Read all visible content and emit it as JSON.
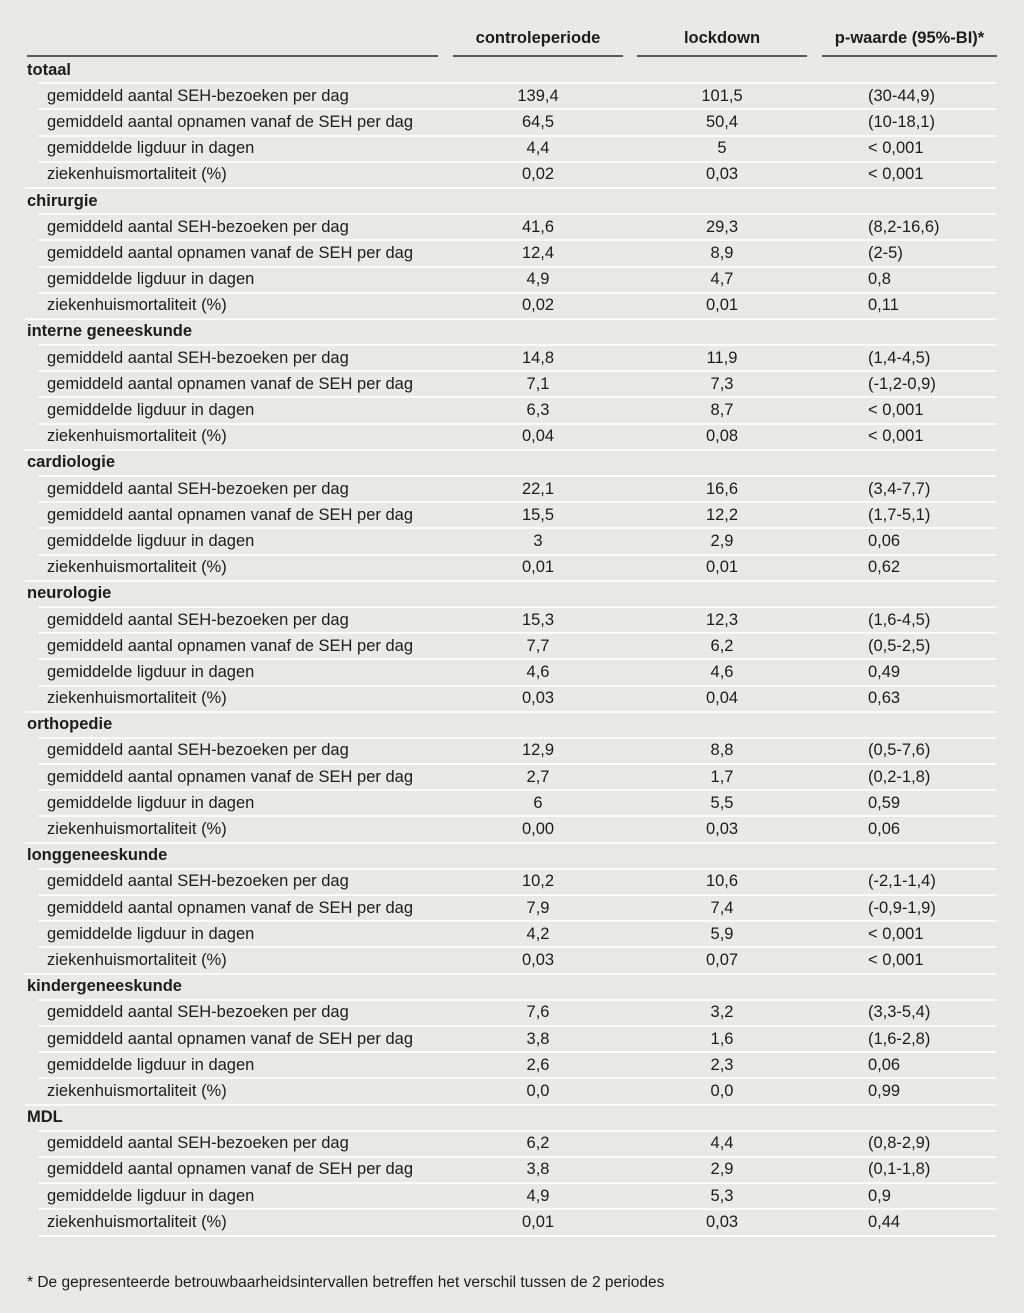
{
  "page": {
    "background_color": "#e9e9e7",
    "text_color": "#1d1d1b",
    "separator_color": "#fbfbfa",
    "header_rule_color": "#59595b"
  },
  "table": {
    "columns": [
      {
        "label": "controleperiode"
      },
      {
        "label": "lockdown"
      },
      {
        "label": "p-waarde (95%-BI)*"
      }
    ],
    "sections": [
      {
        "name": "totaal",
        "rows": [
          {
            "label": "gemiddeld aantal SEH-bezoeken per dag",
            "controleperiode": "139,4",
            "lockdown": "101,5",
            "p_waarde": "(30-44,9)"
          },
          {
            "label": "gemiddeld aantal opnamen vanaf de SEH per dag",
            "controleperiode": "64,5",
            "lockdown": "50,4",
            "p_waarde": "(10-18,1)"
          },
          {
            "label": "gemiddelde ligduur in dagen",
            "controleperiode": "4,4",
            "lockdown": "5",
            "p_waarde": "< 0,001"
          },
          {
            "label": "ziekenhuismortaliteit (%)",
            "controleperiode": "0,02",
            "lockdown": "0,03",
            "p_waarde": "< 0,001"
          }
        ]
      },
      {
        "name": "chirurgie",
        "rows": [
          {
            "label": "gemiddeld aantal SEH-bezoeken per dag",
            "controleperiode": "41,6",
            "lockdown": "29,3",
            "p_waarde": "(8,2-16,6)"
          },
          {
            "label": "gemiddeld aantal opnamen vanaf de SEH per dag",
            "controleperiode": "12,4",
            "lockdown": "8,9",
            "p_waarde": "(2-5)"
          },
          {
            "label": "gemiddelde ligduur in dagen",
            "controleperiode": "4,9",
            "lockdown": "4,7",
            "p_waarde": "0,8"
          },
          {
            "label": "ziekenhuismortaliteit (%)",
            "controleperiode": "0,02",
            "lockdown": "0,01",
            "p_waarde": "0,11"
          }
        ]
      },
      {
        "name": "interne geneeskunde",
        "rows": [
          {
            "label": "gemiddeld aantal SEH-bezoeken per dag",
            "controleperiode": "14,8",
            "lockdown": "11,9",
            "p_waarde": "(1,4-4,5)"
          },
          {
            "label": "gemiddeld aantal opnamen vanaf de SEH per dag",
            "controleperiode": "7,1",
            "lockdown": "7,3",
            "p_waarde": "(-1,2-0,9)"
          },
          {
            "label": "gemiddelde ligduur in dagen",
            "controleperiode": "6,3",
            "lockdown": "8,7",
            "p_waarde": "< 0,001"
          },
          {
            "label": "ziekenhuismortaliteit (%)",
            "controleperiode": "0,04",
            "lockdown": "0,08",
            "p_waarde": "< 0,001"
          }
        ]
      },
      {
        "name": "cardiologie",
        "rows": [
          {
            "label": "gemiddeld aantal SEH-bezoeken per dag",
            "controleperiode": "22,1",
            "lockdown": "16,6",
            "p_waarde": "(3,4-7,7)"
          },
          {
            "label": "gemiddeld aantal opnamen vanaf de SEH per dag",
            "controleperiode": "15,5",
            "lockdown": "12,2",
            "p_waarde": "(1,7-5,1)"
          },
          {
            "label": "gemiddelde ligduur in dagen",
            "controleperiode": "3",
            "lockdown": "2,9",
            "p_waarde": "0,06"
          },
          {
            "label": "ziekenhuismortaliteit (%)",
            "controleperiode": "0,01",
            "lockdown": "0,01",
            "p_waarde": "0,62"
          }
        ]
      },
      {
        "name": "neurologie",
        "rows": [
          {
            "label": "gemiddeld aantal SEH-bezoeken per dag",
            "controleperiode": "15,3",
            "lockdown": "12,3",
            "p_waarde": "(1,6-4,5)"
          },
          {
            "label": "gemiddeld aantal opnamen vanaf de SEH per dag",
            "controleperiode": "7,7",
            "lockdown": "6,2",
            "p_waarde": "(0,5-2,5)"
          },
          {
            "label": "gemiddelde ligduur in dagen",
            "controleperiode": "4,6",
            "lockdown": "4,6",
            "p_waarde": "0,49"
          },
          {
            "label": "ziekenhuismortaliteit (%)",
            "controleperiode": "0,03",
            "lockdown": "0,04",
            "p_waarde": "0,63"
          }
        ]
      },
      {
        "name": "orthopedie",
        "rows": [
          {
            "label": "gemiddeld aantal SEH-bezoeken per dag",
            "controleperiode": "12,9",
            "lockdown": "8,8",
            "p_waarde": "(0,5-7,6)"
          },
          {
            "label": "gemiddeld aantal opnamen vanaf de SEH per dag",
            "controleperiode": "2,7",
            "lockdown": "1,7",
            "p_waarde": "(0,2-1,8)"
          },
          {
            "label": "gemiddelde ligduur in dagen",
            "controleperiode": "6",
            "lockdown": "5,5",
            "p_waarde": "0,59"
          },
          {
            "label": "ziekenhuismortaliteit (%)",
            "controleperiode": "0,00",
            "lockdown": "0,03",
            "p_waarde": "0,06"
          }
        ]
      },
      {
        "name": "longgeneeskunde",
        "rows": [
          {
            "label": "gemiddeld aantal SEH-bezoeken per dag",
            "controleperiode": "10,2",
            "lockdown": "10,6",
            "p_waarde": "(-2,1-1,4)"
          },
          {
            "label": "gemiddeld aantal opnamen vanaf de SEH per dag",
            "controleperiode": "7,9",
            "lockdown": "7,4",
            "p_waarde": "(-0,9-1,9)"
          },
          {
            "label": "gemiddelde ligduur in dagen",
            "controleperiode": "4,2",
            "lockdown": "5,9",
            "p_waarde": "< 0,001"
          },
          {
            "label": "ziekenhuismortaliteit (%)",
            "controleperiode": "0,03",
            "lockdown": "0,07",
            "p_waarde": "< 0,001"
          }
        ]
      },
      {
        "name": "kindergeneeskunde",
        "rows": [
          {
            "label": "gemiddeld aantal SEH-bezoeken per dag",
            "controleperiode": "7,6",
            "lockdown": "3,2",
            "p_waarde": "(3,3-5,4)"
          },
          {
            "label": "gemiddeld aantal opnamen vanaf de SEH per dag",
            "controleperiode": "3,8",
            "lockdown": "1,6",
            "p_waarde": "(1,6-2,8)"
          },
          {
            "label": "gemiddelde ligduur in dagen",
            "controleperiode": "2,6",
            "lockdown": "2,3",
            "p_waarde": "0,06"
          },
          {
            "label": "ziekenhuismortaliteit (%)",
            "controleperiode": "0,0",
            "lockdown": "0,0",
            "p_waarde": "0,99"
          }
        ]
      },
      {
        "name": "MDL",
        "rows": [
          {
            "label": "gemiddeld aantal SEH-bezoeken per dag",
            "controleperiode": "6,2",
            "lockdown": "4,4",
            "p_waarde": "(0,8-2,9)"
          },
          {
            "label": "gemiddeld aantal opnamen vanaf de SEH per dag",
            "controleperiode": "3,8",
            "lockdown": "2,9",
            "p_waarde": "(0,1-1,8)"
          },
          {
            "label": "gemiddelde ligduur in dagen",
            "controleperiode": "4,9",
            "lockdown": "5,3",
            "p_waarde": "0,9"
          },
          {
            "label": "ziekenhuismortaliteit (%)",
            "controleperiode": "0,01",
            "lockdown": "0,03",
            "p_waarde": "0,44"
          }
        ]
      }
    ]
  },
  "footnote": "* De gepresenteerde betrouwbaarheidsintervallen betreffen het verschil tussen de 2 periodes"
}
